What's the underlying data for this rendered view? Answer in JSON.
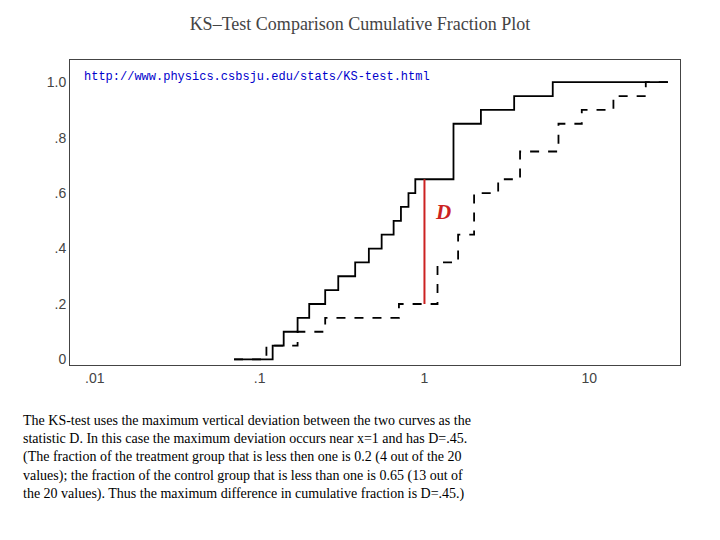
{
  "chart_data": {
    "type": "step",
    "title": "KS–Test Comparison Cumulative Fraction Plot",
    "log": "x",
    "grid": false,
    "xlim": [
      0.007079457843841379,
      35.48133892335755
    ],
    "ylim": [
      -0.02,
      1.08
    ],
    "xticks": [
      {
        "value": 0.01,
        "label": ".01"
      },
      {
        "value": 0.1,
        "label": ".1"
      },
      {
        "value": 1,
        "label": "1"
      },
      {
        "value": 10,
        "label": "10"
      }
    ],
    "yticks": [
      0,
      {
        "value": 0.2,
        "label": ".2"
      },
      {
        "value": 0.4,
        "label": ".4"
      },
      {
        "value": 0.6,
        "label": ".6"
      },
      {
        "value": 0.8,
        "label": ".8"
      },
      {
        "value": 1.0,
        "label": "1.0"
      }
    ],
    "series": [
      {
        "x": [
          0.07,
          0.12,
          0.14,
          0.17,
          0.2,
          0.25,
          0.3,
          0.38,
          0.46,
          0.55,
          0.65,
          0.72,
          0.8,
          0.88,
          0.95,
          1.0,
          1.5,
          2.2,
          3.5,
          6.0,
          30.0
        ],
        "values": [
          0.0,
          0.05,
          0.1,
          0.15,
          0.2,
          0.25,
          0.3,
          0.35,
          0.4,
          0.45,
          0.5,
          0.55,
          0.6,
          0.65,
          0.65,
          0.65,
          0.85,
          0.9,
          0.95,
          1.0,
          1.0
        ],
        "color": "#000000",
        "line_style": "solid"
      },
      {
        "x": [
          0.07,
          0.09,
          0.11,
          0.17,
          0.25,
          0.35,
          0.5,
          0.7,
          1.0,
          1.0,
          1.2,
          1.6,
          2.0,
          2.8,
          3.8,
          5.0,
          6.5,
          9.0,
          14.0,
          22.0,
          30.0
        ],
        "values": [
          0.0,
          0.0,
          0.05,
          0.1,
          0.15,
          0.15,
          0.15,
          0.2,
          0.2,
          0.2,
          0.35,
          0.45,
          0.6,
          0.65,
          0.75,
          0.75,
          0.85,
          0.9,
          0.95,
          1.0,
          1.0
        ],
        "color": "#000000",
        "line_style": "dashed"
      }
    ],
    "lines": [
      {
        "x": 1.0,
        "y": [
          0.2,
          0.65
        ],
        "color": "#cc2222"
      }
    ],
    "annotations": [
      {
        "text": "D",
        "x": 1.12,
        "y": 0.48,
        "color": "#cc2222"
      }
    ],
    "url": {
      "text": "http://www.physics.csbsju.edu/stats/KS-test.html",
      "color": "#0000cc"
    },
    "description": [
      "The KS-test uses the maximum vertical deviation between the two curves as the",
      "statistic D. In this case the maximum deviation occurs near x=1 and has D=.45.",
      "(The fraction of the treatment group that is less then one is 0.2 (4 out of the 20",
      "values); the fraction of the control group that is less than one is 0.65 (13 out of",
      "the 20 values). Thus the maximum difference in cumulative fraction is D=.45.)"
    ]
  }
}
